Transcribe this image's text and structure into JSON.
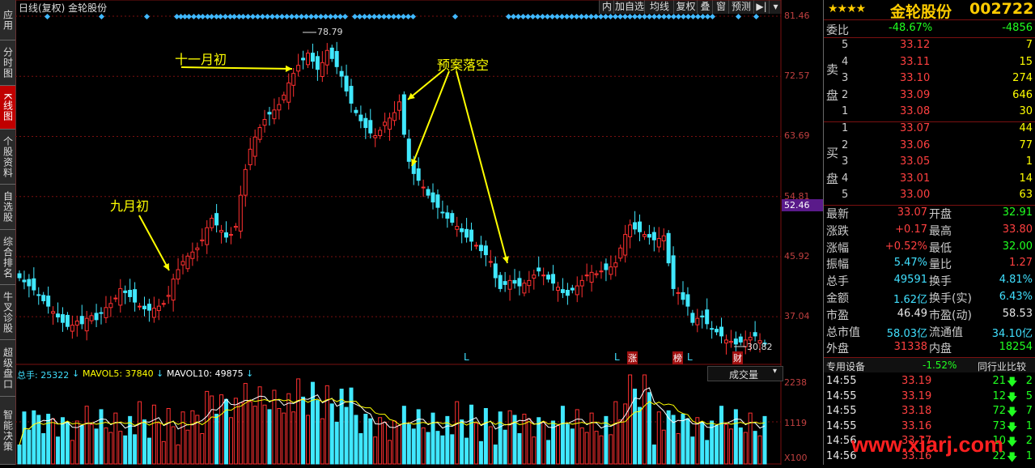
{
  "nav": [
    {
      "label": "应用",
      "active": false
    },
    {
      "label": "分时图",
      "active": false
    },
    {
      "label": "K线图",
      "active": true
    },
    {
      "label": "个股资料",
      "active": false
    },
    {
      "label": "自选股",
      "active": false
    },
    {
      "label": "综合排名",
      "active": false
    },
    {
      "label": "牛叉诊股",
      "active": false
    },
    {
      "label": "超级盘口",
      "active": false
    },
    {
      "label": "智能决策",
      "active": false
    }
  ],
  "top": {
    "title": "日线(复权) 金轮股份",
    "buttons": [
      "内",
      "加自选",
      "均线",
      "复权",
      "叠",
      "窗",
      "预测"
    ],
    "arrow_btn": "▶|",
    "dropdown": "▾"
  },
  "price_axis": [
    "81.46",
    "72.57",
    "63.69",
    "54.81",
    "52.46",
    "45.92",
    "37.04"
  ],
  "price_axis_current": "52.46",
  "price_ticks": {
    "max_label": "78.79",
    "min_label": "30.82"
  },
  "annotations": {
    "nov": "十一月初",
    "sep": "九月初",
    "plan": "预案落空"
  },
  "markers": [
    "L",
    "L",
    "涨",
    "榜",
    "L",
    "财"
  ],
  "volume": {
    "label_total": "总手: 25322",
    "label_ma5": "MAVOL5: 37840",
    "label_ma10": "MAVOL10: 49875",
    "axis": [
      "2238",
      "1119",
      "X100"
    ],
    "dropdown": "成交量"
  },
  "colors": {
    "up": "#ff3030",
    "down": "#40e8ff",
    "ma5": "#ffffff",
    "ma10": "#ffff00",
    "grid": "#7a1010",
    "annotation": "#ffff00"
  },
  "chart_data": {
    "type": "candlestick",
    "title": "日线(复权) 金轮股份",
    "ylim": [
      30,
      81.46
    ],
    "y_ticks": [
      81.46,
      72.57,
      63.69,
      54.81,
      45.92,
      37.04
    ],
    "closes": [
      42.8,
      42.2,
      41.6,
      41.0,
      40.2,
      39.4,
      38.6,
      37.8,
      37.0,
      36.2,
      35.6,
      35.8,
      36.4,
      36.0,
      36.8,
      37.2,
      36.6,
      37.6,
      38.4,
      39.0,
      39.8,
      41.2,
      40.6,
      40.0,
      39.2,
      38.6,
      38.2,
      38.0,
      38.3,
      38.6,
      39.0,
      40.2,
      42.6,
      44.0,
      45.2,
      46.0,
      46.6,
      47.2,
      48.4,
      50.2,
      51.6,
      50.6,
      49.8,
      48.8,
      49.2,
      50.4,
      55.0,
      58.8,
      61.8,
      63.6,
      65.0,
      66.2,
      67.0,
      67.6,
      68.4,
      69.8,
      71.6,
      73.0,
      74.2,
      75.0,
      76.0,
      74.8,
      73.6,
      74.6,
      76.4,
      75.2,
      74.0,
      72.6,
      70.4,
      68.6,
      67.2,
      66.0,
      65.0,
      64.2,
      63.8,
      64.6,
      65.8,
      66.4,
      67.2,
      68.8,
      64.0,
      60.0,
      58.2,
      57.2,
      56.2,
      55.0,
      54.0,
      53.2,
      52.4,
      51.6,
      51.0,
      50.4,
      49.6,
      48.8,
      48.2,
      47.6,
      46.8,
      46.2,
      45.2,
      42.8,
      41.2,
      41.8,
      42.4,
      42.0,
      41.6,
      42.0,
      42.4,
      43.2,
      43.8,
      43.2,
      42.6,
      42.0,
      41.4,
      40.6,
      40.2,
      41.0,
      41.6,
      42.4,
      43.2,
      43.6,
      43.4,
      43.8,
      44.0,
      44.4,
      45.0,
      47.2,
      49.2,
      50.6,
      50.0,
      49.6,
      49.2,
      48.8,
      48.4,
      48.6,
      49.0,
      45.0,
      41.2,
      40.6,
      39.6,
      38.6,
      36.2,
      36.8,
      37.0,
      36.0,
      35.2,
      34.8,
      34.2,
      33.6,
      33.4,
      33.0,
      33.3,
      33.6,
      34.0,
      34.2,
      33.5,
      33.07
    ],
    "volume_ylim": [
      0,
      2238
    ],
    "volume_ticks": [
      2238,
      1119
    ],
    "ma_series": [
      {
        "name": "MAVOL5",
        "value": 37840
      },
      {
        "name": "MAVOL10",
        "value": 49875
      }
    ]
  },
  "right": {
    "stars": "★★★★",
    "name": "金轮股份",
    "code": "002722",
    "weibi": {
      "label": "委比",
      "pct": "-48.67%",
      "num": "-4856"
    },
    "sell_label": "卖盘",
    "buy_label": "买盘",
    "sells": [
      {
        "n": "5",
        "p": "33.12",
        "v": "7"
      },
      {
        "n": "4",
        "p": "33.11",
        "v": "15"
      },
      {
        "n": "3",
        "p": "33.10",
        "v": "274"
      },
      {
        "n": "2",
        "p": "33.09",
        "v": "646"
      },
      {
        "n": "1",
        "p": "33.08",
        "v": "30"
      }
    ],
    "buys": [
      {
        "n": "1",
        "p": "33.07",
        "v": "44"
      },
      {
        "n": "2",
        "p": "33.06",
        "v": "77"
      },
      {
        "n": "3",
        "p": "33.05",
        "v": "1"
      },
      {
        "n": "4",
        "p": "33.01",
        "v": "14"
      },
      {
        "n": "5",
        "p": "33.00",
        "v": "63"
      }
    ],
    "stats": [
      {
        "l1": "最新",
        "v1": "33.07",
        "c1": "red",
        "l2": "开盘",
        "v2": "32.91",
        "c2": "green"
      },
      {
        "l1": "涨跌",
        "v1": "+0.17",
        "c1": "red",
        "l2": "最高",
        "v2": "33.80",
        "c2": "red"
      },
      {
        "l1": "涨幅",
        "v1": "+0.52%",
        "c1": "red",
        "l2": "最低",
        "v2": "32.00",
        "c2": "green"
      },
      {
        "l1": "振幅",
        "v1": "5.47%",
        "c1": "cyan",
        "l2": "量比",
        "v2": "1.27",
        "c2": "red"
      },
      {
        "l1": "总手",
        "v1": "49591",
        "c1": "cyan",
        "l2": "换手",
        "v2": "4.81%",
        "c2": "cyan"
      },
      {
        "l1": "金额",
        "v1": "1.62亿",
        "c1": "cyan",
        "l2": "换手(实)",
        "v2": "6.43%",
        "c2": "cyan"
      },
      {
        "l1": "市盈",
        "v1": "46.49",
        "c1": "white",
        "l2": "市盈(动)",
        "v2": "58.53",
        "c2": "white"
      },
      {
        "l1": "总市值",
        "v1": "58.03亿",
        "c1": "cyan",
        "l2": "流通值",
        "v2": "34.10亿",
        "c2": "cyan"
      },
      {
        "l1": "外盘",
        "v1": "31338",
        "c1": "red",
        "l2": "内盘",
        "v2": "18254",
        "c2": "green"
      }
    ],
    "tabs": {
      "device": "专用设备",
      "device_pct": "-1.52%",
      "peer": "同行业比较"
    },
    "ticks": [
      {
        "t": "14:55",
        "p": "33.19",
        "v": "21",
        "d": "down",
        "n": "2"
      },
      {
        "t": "14:55",
        "p": "33.19",
        "v": "12",
        "d": "down",
        "n": "5"
      },
      {
        "t": "14:55",
        "p": "33.18",
        "v": "72",
        "d": "down",
        "n": "7"
      },
      {
        "t": "14:55",
        "p": "33.16",
        "v": "73",
        "d": "down",
        "n": "1"
      },
      {
        "t": "14:56",
        "p": "33.17",
        "v": "10",
        "d": "down",
        "n": "2"
      },
      {
        "t": "14:56",
        "p": "33.16",
        "v": "22",
        "d": "down",
        "n": "1"
      }
    ],
    "watermark": "www.xiarj.com"
  }
}
